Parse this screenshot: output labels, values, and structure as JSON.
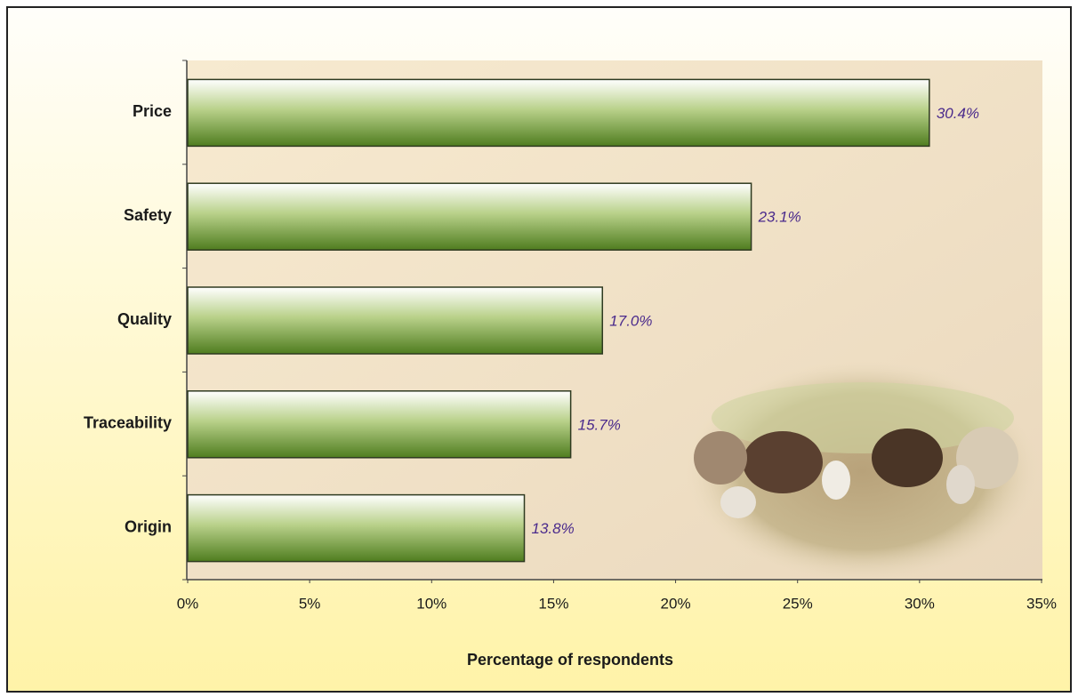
{
  "chart_data": {
    "type": "bar",
    "categories": [
      "Price",
      "Safety",
      "Quality",
      "Traceability",
      "Origin"
    ],
    "values": [
      30.4,
      23.1,
      17.0,
      15.7,
      13.8
    ],
    "value_labels": [
      "30.4%",
      "23.1%",
      "17.0%",
      "15.7%",
      "13.8%"
    ],
    "color": "#4f7d1f",
    "x_label": "Percentage of respondents",
    "xlim": [
      0,
      35
    ],
    "xticks": [
      {
        "value": 0,
        "label": "0%"
      },
      {
        "value": 5,
        "label": "5%"
      },
      {
        "value": 10,
        "label": "10%"
      },
      {
        "value": 15,
        "label": "15%"
      },
      {
        "value": 20,
        "label": "20%"
      },
      {
        "value": 25,
        "label": "25%"
      },
      {
        "value": 30,
        "label": "30%"
      },
      {
        "value": 35,
        "label": "35%"
      }
    ],
    "grid": false
  }
}
